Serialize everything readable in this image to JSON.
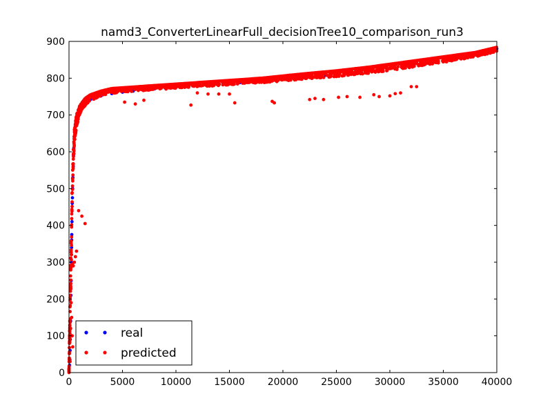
{
  "chart_data": {
    "type": "scatter",
    "title": "namd3_ConverterLinearFull_decisionTree10_comparison_run3",
    "xlabel": "",
    "ylabel": "",
    "xlim": [
      0,
      40000
    ],
    "ylim": [
      0,
      900
    ],
    "xticks": [
      "0",
      "5000",
      "10000",
      "15000",
      "20000",
      "25000",
      "30000",
      "35000",
      "40000"
    ],
    "yticks": [
      "0",
      "100",
      "200",
      "300",
      "400",
      "500",
      "600",
      "700",
      "800",
      "900"
    ],
    "grid": false,
    "legend_position": "lower-left",
    "series": [
      {
        "name": "real",
        "color": "#0000ff",
        "points": [
          [
            0,
            5
          ],
          [
            50,
            20
          ],
          [
            80,
            35
          ],
          [
            100,
            60
          ],
          [
            120,
            90
          ],
          [
            150,
            140
          ],
          [
            180,
            210
          ],
          [
            200,
            250
          ],
          [
            220,
            300
          ],
          [
            240,
            340
          ],
          [
            250,
            360
          ],
          [
            260,
            375
          ],
          [
            280,
            410
          ],
          [
            300,
            460
          ],
          [
            320,
            475
          ],
          [
            340,
            500
          ],
          [
            360,
            530
          ],
          [
            400,
            560
          ],
          [
            420,
            590
          ],
          [
            450,
            610
          ],
          [
            500,
            640
          ],
          [
            600,
            670
          ],
          [
            800,
            700
          ],
          [
            1000,
            715
          ],
          [
            1500,
            730
          ],
          [
            2000,
            742
          ],
          [
            3000,
            752
          ],
          [
            4000,
            758
          ],
          [
            5000,
            762
          ],
          [
            6000,
            765
          ],
          [
            7000,
            768
          ],
          [
            8000,
            771
          ],
          [
            9000,
            773
          ],
          [
            10000,
            776
          ],
          [
            12000,
            780
          ],
          [
            14000,
            784
          ],
          [
            16000,
            788
          ],
          [
            18000,
            792
          ],
          [
            20000,
            797
          ],
          [
            22000,
            802
          ],
          [
            24000,
            808
          ],
          [
            26000,
            814
          ],
          [
            28000,
            820
          ],
          [
            30000,
            827
          ],
          [
            32000,
            834
          ],
          [
            34000,
            842
          ],
          [
            36000,
            852
          ],
          [
            38000,
            864
          ],
          [
            40000,
            880
          ]
        ]
      },
      {
        "name": "predicted",
        "color": "#ff0000",
        "upper_band": [
          [
            0,
            0
          ],
          [
            100,
            200
          ],
          [
            200,
            380
          ],
          [
            300,
            520
          ],
          [
            400,
            600
          ],
          [
            500,
            660
          ],
          [
            700,
            700
          ],
          [
            1000,
            725
          ],
          [
            1500,
            745
          ],
          [
            2000,
            755
          ],
          [
            3000,
            765
          ],
          [
            4000,
            772
          ],
          [
            6000,
            776
          ],
          [
            8000,
            780
          ],
          [
            10000,
            784
          ],
          [
            12000,
            788
          ],
          [
            15000,
            794
          ],
          [
            18000,
            800
          ],
          [
            20000,
            806
          ],
          [
            22000,
            812
          ],
          [
            25000,
            820
          ],
          [
            28000,
            830
          ],
          [
            30000,
            838
          ],
          [
            32000,
            846
          ],
          [
            34000,
            854
          ],
          [
            36000,
            862
          ],
          [
            38000,
            870
          ],
          [
            40000,
            884
          ]
        ],
        "lower_band": [
          [
            0,
            0
          ],
          [
            100,
            60
          ],
          [
            200,
            200
          ],
          [
            300,
            400
          ],
          [
            400,
            540
          ],
          [
            500,
            600
          ],
          [
            700,
            650
          ],
          [
            1000,
            690
          ],
          [
            1500,
            715
          ],
          [
            2000,
            730
          ],
          [
            3000,
            745
          ],
          [
            4000,
            752
          ],
          [
            6000,
            758
          ],
          [
            8000,
            762
          ],
          [
            10000,
            766
          ],
          [
            12000,
            770
          ],
          [
            15000,
            775
          ],
          [
            18000,
            780
          ],
          [
            20000,
            785
          ],
          [
            22000,
            790
          ],
          [
            25000,
            796
          ],
          [
            28000,
            804
          ],
          [
            30000,
            812
          ],
          [
            32000,
            820
          ],
          [
            34000,
            830
          ],
          [
            36000,
            840
          ],
          [
            38000,
            852
          ],
          [
            40000,
            866
          ]
        ],
        "outliers": [
          [
            300,
            295
          ],
          [
            400,
            290
          ],
          [
            500,
            300
          ],
          [
            600,
            315
          ],
          [
            700,
            330
          ],
          [
            1200,
            425
          ],
          [
            1500,
            405
          ],
          [
            900,
            440
          ],
          [
            300,
            100
          ],
          [
            250,
            150
          ],
          [
            200,
            190
          ],
          [
            350,
            70
          ],
          [
            100,
            30
          ],
          [
            150,
            120
          ],
          [
            600,
            660
          ],
          [
            800,
            690
          ],
          [
            5200,
            735
          ],
          [
            6200,
            730
          ],
          [
            7000,
            740
          ],
          [
            11400,
            727
          ],
          [
            15500,
            733
          ],
          [
            19000,
            737
          ],
          [
            19200,
            733
          ],
          [
            22500,
            742
          ],
          [
            23000,
            745
          ],
          [
            23800,
            742
          ],
          [
            25200,
            748
          ],
          [
            26000,
            750
          ],
          [
            27200,
            748
          ],
          [
            28500,
            755
          ],
          [
            29000,
            750
          ],
          [
            30000,
            752
          ],
          [
            30500,
            758
          ],
          [
            31000,
            760
          ],
          [
            32000,
            777
          ],
          [
            32500,
            777
          ],
          [
            15000,
            757
          ],
          [
            14000,
            757
          ],
          [
            13000,
            757
          ],
          [
            12000,
            760
          ]
        ]
      }
    ]
  }
}
